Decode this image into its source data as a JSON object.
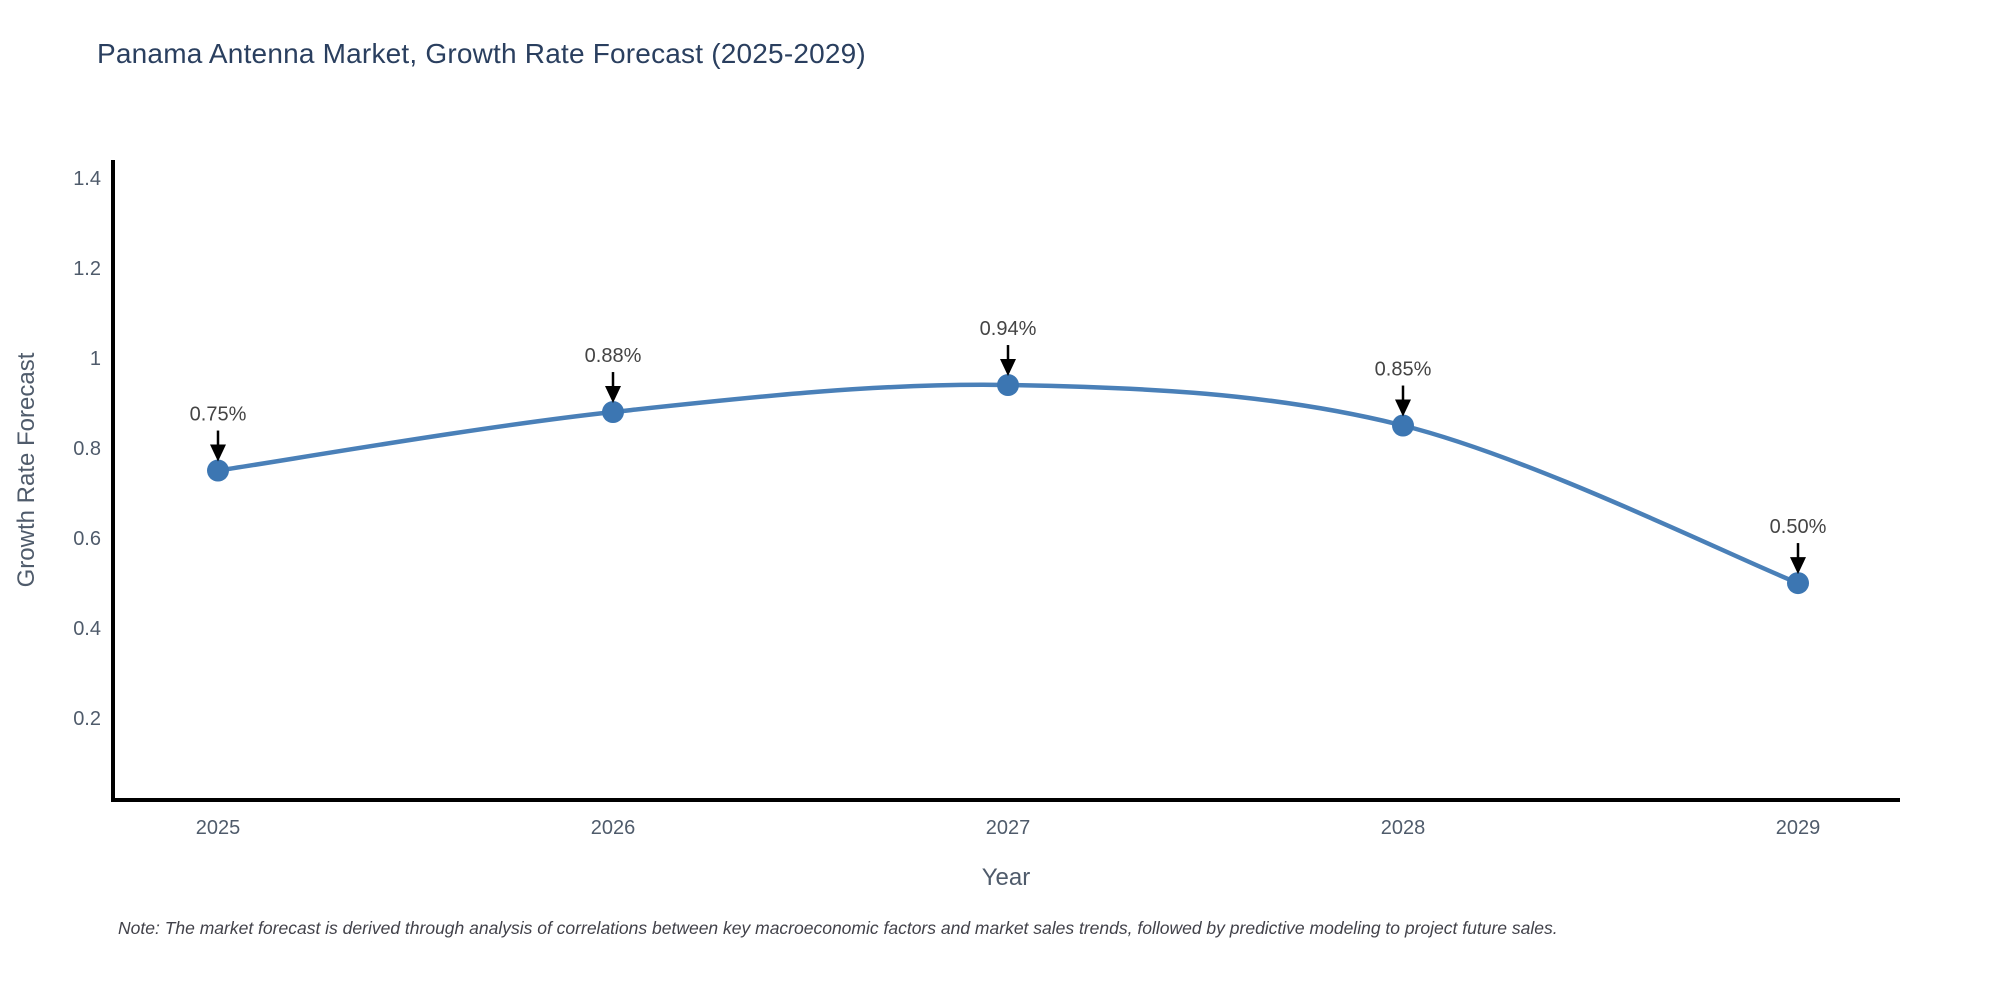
{
  "title": "Panama Antenna Market, Growth Rate Forecast (2025-2029)",
  "note": "Note: The market forecast is derived through analysis of correlations between key macroeconomic factors and market sales trends, followed by predictive modeling to project future sales.",
  "chart_data": {
    "type": "line",
    "title": "Panama Antenna Market, Growth Rate Forecast (2025-2029)",
    "x": [
      "2025",
      "2026",
      "2027",
      "2028",
      "2029"
    ],
    "series": [
      {
        "name": "Growth Rate Forecast",
        "values": [
          0.75,
          0.88,
          0.94,
          0.85,
          0.5
        ]
      }
    ],
    "point_labels": [
      "0.75%",
      "0.88%",
      "0.94%",
      "0.85%",
      "0.50%"
    ],
    "xlabel": "Year",
    "ylabel": "Growth Rate Forecast",
    "y_ticks": [
      0.2,
      0.4,
      0.6,
      0.8,
      1,
      1.2,
      1.4
    ],
    "y_tick_labels": [
      "0.2",
      "0.4",
      "0.6",
      "0.8",
      "1",
      "1.2",
      "1.4"
    ],
    "ylim": [
      0.018,
      1.44
    ],
    "line_shape": "spline",
    "grid": false,
    "legend_position": "none",
    "annotations_have_arrows": true,
    "colors": {
      "line": "#4a80b8",
      "marker": "#3c76b2",
      "axis_line": "#000000",
      "annotation_text": "#444444",
      "annotation_arrow": "#000000",
      "tick_label": "#4f5b6b",
      "title": "#2a3f5f",
      "note_text": "#42424a",
      "background": "#ffffff"
    }
  }
}
